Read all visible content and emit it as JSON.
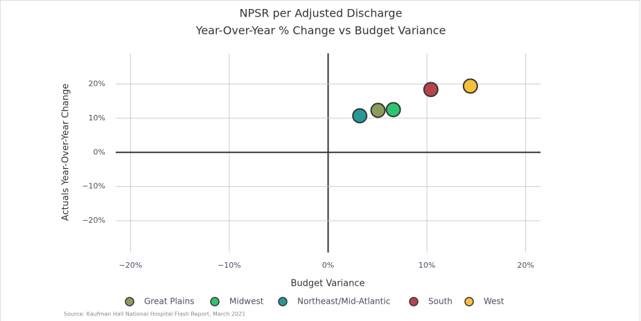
{
  "chart_data": {
    "type": "scatter",
    "title": "NPSR per Adjusted Discharge",
    "subtitle": "Year-Over-Year % Change vs Budget Variance",
    "xlabel": "Budget Variance",
    "ylabel": "Actuals Year-Over-Year Change",
    "source": "Source: Kaufman Hall National Hospital Flash Report, March 2021",
    "xlim": [
      -21.5,
      21.5
    ],
    "ylim": [
      -29.3,
      29
    ],
    "xticks": [
      {
        "value": -20,
        "label": "−20%"
      },
      {
        "value": -10,
        "label": "−10%"
      },
      {
        "value": 0,
        "label": "0%"
      },
      {
        "value": 10,
        "label": "10%"
      },
      {
        "value": 20,
        "label": "20%"
      }
    ],
    "yticks": [
      {
        "value": -20,
        "label": "−20%"
      },
      {
        "value": -10,
        "label": "−10%"
      },
      {
        "value": 0,
        "label": "0%"
      },
      {
        "value": 10,
        "label": "10%"
      },
      {
        "value": 20,
        "label": "20%"
      }
    ],
    "grid": true,
    "series": [
      {
        "name": "Great Plains",
        "color": "#8b9c5c",
        "x": [
          5.05
        ],
        "values": [
          12.3
        ]
      },
      {
        "name": "Midwest",
        "color": "#2fc46f",
        "x": [
          6.6
        ],
        "values": [
          12.5
        ]
      },
      {
        "name": "Northeast/Mid-Atlantic",
        "color": "#27989a",
        "x": [
          3.2
        ],
        "values": [
          10.7
        ]
      },
      {
        "name": "South",
        "color": "#b5444f",
        "x": [
          10.4
        ],
        "values": [
          18.4
        ]
      },
      {
        "name": "West",
        "color": "#f7bf3c",
        "x": [
          14.4
        ],
        "values": [
          19.4
        ]
      }
    ]
  }
}
